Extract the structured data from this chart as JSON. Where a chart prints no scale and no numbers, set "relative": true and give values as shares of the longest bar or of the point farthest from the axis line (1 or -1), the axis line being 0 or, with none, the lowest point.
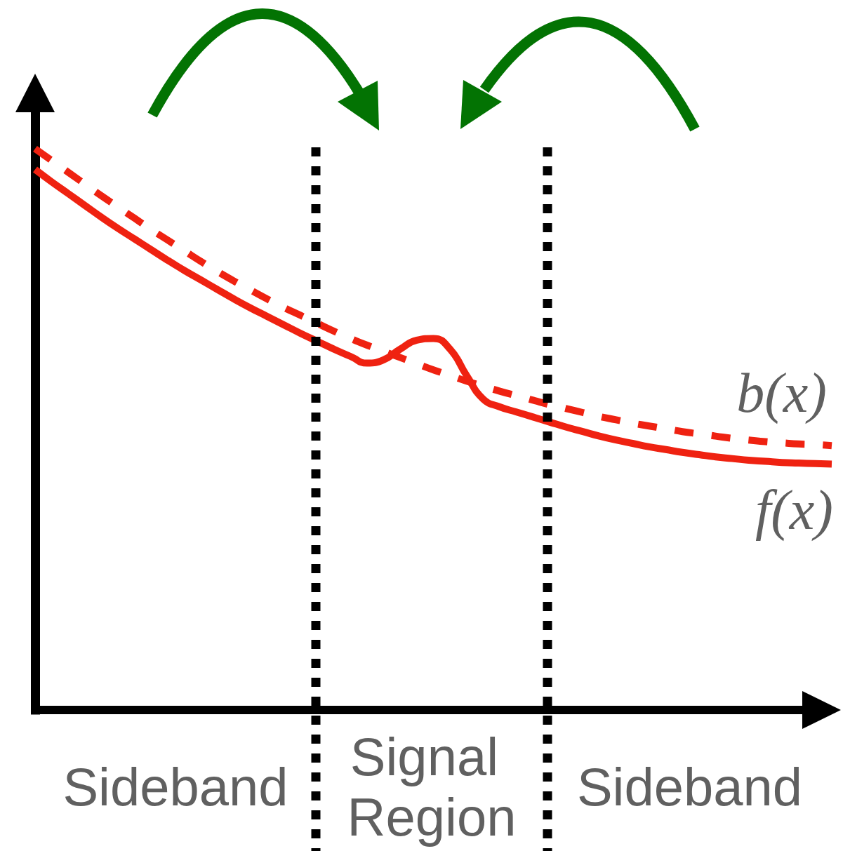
{
  "chart_data": {
    "type": "line",
    "relative": true,
    "categories": [
      null,
      null,
      null,
      null,
      null,
      null,
      null,
      null,
      null,
      null,
      null,
      null,
      null,
      null,
      null,
      null,
      null,
      null,
      null,
      null,
      null,
      null,
      null,
      null,
      null,
      null,
      null,
      null,
      null,
      null,
      null,
      null,
      null,
      null,
      null,
      null,
      null,
      null,
      null,
      null,
      null,
      null,
      null,
      null,
      null,
      null,
      null,
      null,
      null
    ],
    "series": [
      {
        "name": "b(x)",
        "color": "#ef2211",
        "line_style": "dashed",
        "values": [
          1,
          0.979,
          0.958,
          0.937,
          0.916,
          0.896,
          0.876,
          0.856,
          0.837,
          0.818,
          0.799,
          0.781,
          0.764,
          0.748,
          0.732,
          0.717,
          0.703,
          0.689,
          0.675,
          0.662,
          0.65,
          0.639,
          0.628,
          0.617,
          0.606,
          0.596,
          0.586,
          0.577,
          0.568,
          0.56,
          0.552,
          0.544,
          0.537,
          0.53,
          0.523,
          0.517,
          0.511,
          0.506,
          0.501,
          0.496,
          0.492,
          0.488,
          0.484,
          0.481,
          0.478,
          0.476,
          0.474,
          0.473,
          0.471
        ]
      },
      {
        "name": "f(x)",
        "color": "#ef2211",
        "line_style": "solid",
        "values": [
          0.963,
          0.941,
          0.92,
          0.899,
          0.878,
          0.858,
          0.839,
          0.82,
          0.801,
          0.783,
          0.766,
          0.749,
          0.732,
          0.716,
          0.701,
          0.686,
          0.671,
          0.657,
          0.643,
          0.63,
          0.618,
          0.624,
          0.643,
          0.659,
          0.662,
          0.643,
          0.596,
          0.554,
          0.54,
          0.531,
          0.522,
          0.513,
          0.504,
          0.496,
          0.488,
          0.481,
          0.475,
          0.469,
          0.464,
          0.459,
          0.455,
          0.451,
          0.448,
          0.445,
          0.443,
          0.441,
          0.44,
          0.439,
          0.438
        ]
      }
    ],
    "annotations": [
      "Sideband",
      "Signal Region",
      "Sideband"
    ]
  }
}
